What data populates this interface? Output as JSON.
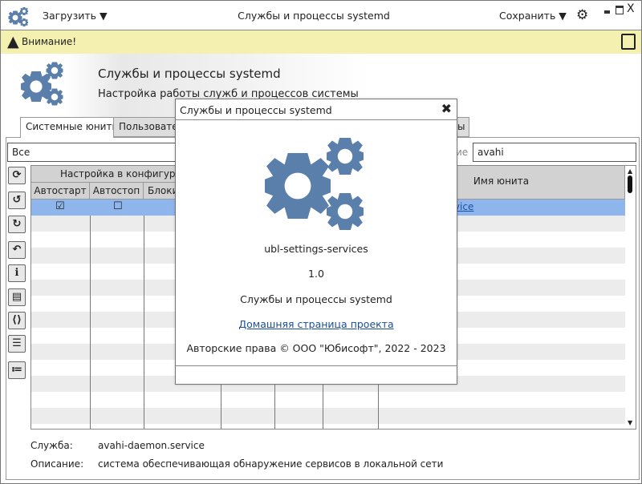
{
  "titlebar": {
    "load_label": "Загрузить",
    "title": "Службы и процессы systemd",
    "save_label": "Сохранить",
    "icon": "gears-icon",
    "settings_icon": "gear-icon"
  },
  "warning": {
    "text": "Внимание!",
    "icon": "warning-triangle-icon",
    "save_lock_icon": "floppy-lock-icon"
  },
  "banner": {
    "title": "Службы и процессы systemd",
    "subtitle": "Настройка работы служб и процессов системы"
  },
  "tabs": [
    {
      "label": "Системные юниты",
      "active": true
    },
    {
      "label": "Пользовател"
    },
    {
      "label": "ы"
    }
  ],
  "filter": {
    "value": "Все",
    "search_label_fragment": "ие",
    "search_value": "avahi"
  },
  "table": {
    "group_header": "Настройка в конфигурац",
    "columns": [
      "Автостарт",
      "Автостоп",
      "Блоки"
    ],
    "unit_name_header": "Имя юнита",
    "selected_row": {
      "autostart": true,
      "autostop": false,
      "unit_fragment": "rvice"
    },
    "selection_color": "#8fb6ec"
  },
  "sidebar_buttons": [
    "refresh-icon",
    "history-icon",
    "redo-icon",
    "undo-icon",
    "info-icon",
    "document-icon",
    "code-document-icon",
    "list-window-icon",
    "list-icon"
  ],
  "details": {
    "service_label": "Служба:",
    "service_value": "avahi-daemon.service",
    "desc_label": "Описание:",
    "desc_value": "система обеспечивающая обнаружение сервисов в локальной сети"
  },
  "dialog": {
    "title": "Службы и процессы systemd",
    "app_name": "ubl-settings-services",
    "version": "1.0",
    "description": "Службы и процессы systemd",
    "homepage_link": "Домашняя страница проекта",
    "copyright": "Авторские права © ООО \"Юбисофт\", 2022 - 2023",
    "accent": "#5b7fab"
  }
}
